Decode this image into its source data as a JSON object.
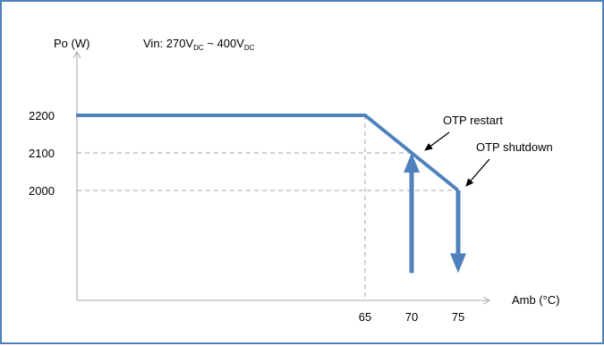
{
  "chart_data": {
    "type": "line",
    "title": "",
    "ylabel": "Po (W)",
    "xlabel": "Amb (°C)",
    "condition": {
      "prefix": "Vin: 270V",
      "sub1": "DC",
      "middle": " ~ 400V",
      "sub2": "DC"
    },
    "series": [
      {
        "x": [
          0,
          65,
          75
        ],
        "y": [
          2200,
          2200,
          2000
        ]
      }
    ],
    "xticks": [
      65,
      70,
      75
    ],
    "yticks": [
      2000,
      2100,
      2200
    ],
    "xtick_labels": [
      "65",
      "70",
      "75"
    ],
    "ytick_labels": [
      "2000",
      "2100",
      "2200"
    ],
    "reference_lines": [
      {
        "type": "horizontal",
        "y": 2100,
        "x_end": 70
      },
      {
        "type": "horizontal",
        "y": 2000,
        "x_end": 75
      },
      {
        "type": "vertical",
        "x": 65,
        "y_end": 2200
      }
    ],
    "arrows": [
      {
        "name": "otp-restart-arrow",
        "x": 70,
        "from": 1780,
        "to": 2100
      },
      {
        "name": "otp-shutdown-arrow",
        "x": 75,
        "from": 2000,
        "to": 1780
      }
    ],
    "annotations": [
      {
        "name": "otp-restart",
        "text": "OTP restart",
        "x": 70,
        "y": 2100
      },
      {
        "name": "otp-shutdown",
        "text": "OTP shutdown",
        "x": 75,
        "y": 2000
      }
    ],
    "colors": {
      "line": "#4f81bd",
      "frame": "#4f81bd",
      "axis": "#a6a6a6",
      "grid": "#a6a6a6"
    }
  }
}
